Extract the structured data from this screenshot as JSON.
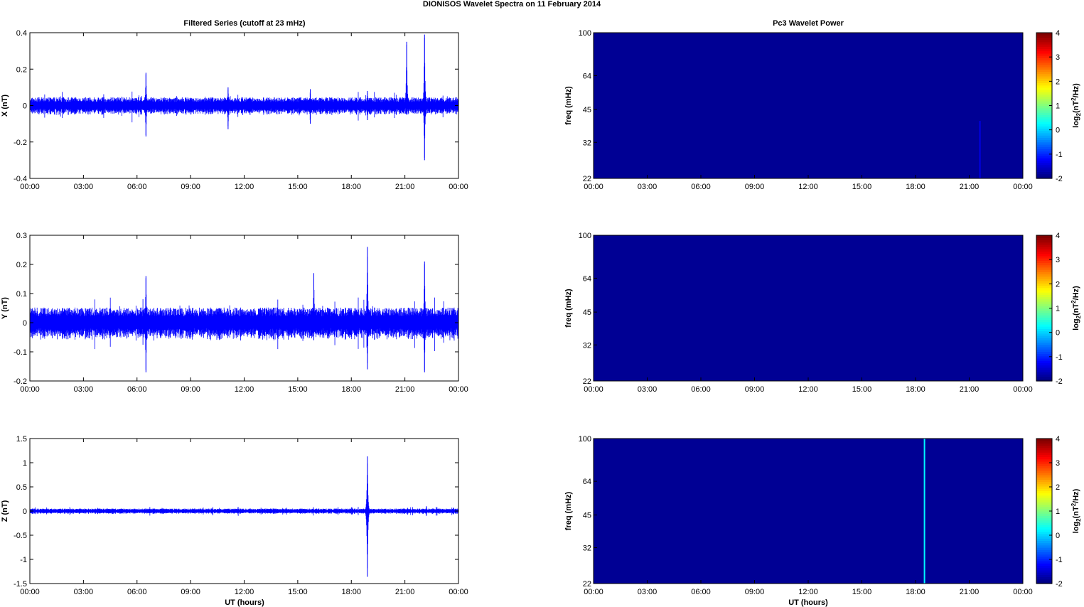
{
  "figure": {
    "main_title": "DIONISOS Wavelet Spectra on 11 February  2014",
    "left_title": "Filtered Series (cutoff at 23 mHz)",
    "right_title": "Pc3 Wavelet Power",
    "xlabel": "UT (hours)",
    "time_ticks": [
      "00:00",
      "03:00",
      "06:00",
      "09:00",
      "12:00",
      "15:00",
      "18:00",
      "21:00",
      "00:00"
    ],
    "freq_label": "freq (mHz)",
    "colorbar_label": "log2(nT2/Hz)",
    "colorbar_ticks": [
      "-2",
      "-1",
      "0",
      "1",
      "2",
      "3",
      "4"
    ]
  },
  "chart_data": [
    {
      "type": "line",
      "ylabel": "X (nT)",
      "xlim": [
        0,
        24
      ],
      "ylim": [
        -0.4,
        0.4
      ],
      "yticks": [
        "-0.4",
        "-0.2",
        "0",
        "0.2",
        "0.4"
      ],
      "color": "#0000ff",
      "noise_amplitude": 0.035,
      "spikes": [
        {
          "t": 6.5,
          "max": 0.18,
          "min": -0.17
        },
        {
          "t": 11.1,
          "max": 0.1,
          "min": -0.13
        },
        {
          "t": 15.7,
          "max": 0.09,
          "min": -0.1
        },
        {
          "t": 18.9,
          "max": 0.08,
          "min": -0.08
        },
        {
          "t": 21.1,
          "max": 0.35,
          "min": -0.05
        },
        {
          "t": 22.1,
          "max": 0.39,
          "min": -0.3
        }
      ]
    },
    {
      "type": "line",
      "ylabel": "Y (nT)",
      "xlim": [
        0,
        24
      ],
      "ylim": [
        -0.2,
        0.3
      ],
      "yticks": [
        "-0.2",
        "-0.1",
        "0",
        "0.1",
        "0.2",
        "0.3"
      ],
      "color": "#0000ff",
      "noise_amplitude": 0.04,
      "spikes": [
        {
          "t": 6.5,
          "max": 0.16,
          "min": -0.17
        },
        {
          "t": 15.9,
          "max": 0.17,
          "min": -0.06
        },
        {
          "t": 18.9,
          "max": 0.26,
          "min": -0.16
        },
        {
          "t": 22.1,
          "max": 0.21,
          "min": -0.17
        }
      ]
    },
    {
      "type": "line",
      "ylabel": "Z (nT)",
      "xlim": [
        0,
        24
      ],
      "ylim": [
        -1.5,
        1.5
      ],
      "yticks": [
        "-1.5",
        "-1",
        "-0.5",
        "0",
        "0.5",
        "1",
        "1.5"
      ],
      "color": "#0000ff",
      "noise_amplitude": 0.04,
      "spikes": [
        {
          "t": 18.9,
          "max": 1.13,
          "min": -1.36
        },
        {
          "t": 22.2,
          "max": 0.1,
          "min": -0.1
        }
      ]
    },
    {
      "type": "heatmap",
      "ylabel": "freq (mHz)",
      "xlim": [
        0,
        24
      ],
      "yticks": [
        "22",
        "32",
        "45",
        "64",
        "100"
      ],
      "clim": [
        -2,
        4
      ],
      "background_value": -2,
      "features": [
        {
          "t": 21.6,
          "fmin": 22,
          "fmax": 40,
          "value": -1.4
        }
      ]
    },
    {
      "type": "heatmap",
      "ylabel": "freq (mHz)",
      "xlim": [
        0,
        24
      ],
      "yticks": [
        "22",
        "32",
        "45",
        "64",
        "100"
      ],
      "clim": [
        -2,
        4
      ],
      "background_value": -2,
      "features": []
    },
    {
      "type": "heatmap",
      "ylabel": "freq (mHz)",
      "xlim": [
        0,
        24
      ],
      "yticks": [
        "22",
        "32",
        "45",
        "64",
        "100"
      ],
      "clim": [
        -2,
        4
      ],
      "background_value": -2,
      "features": [
        {
          "t": 18.5,
          "fmin": 22,
          "fmax": 100,
          "value": 0.2
        }
      ]
    }
  ]
}
